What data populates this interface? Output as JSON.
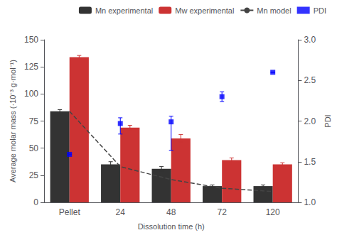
{
  "chart_data": {
    "type": "bar",
    "xlabel": "Dissolution time (h)",
    "ylabel": "Average molar mass (·10⁻³ g·mol⁻¹)",
    "y2label": "PDI",
    "categories": [
      "Pellet",
      "24",
      "48",
      "72",
      "120"
    ],
    "ylim": [
      0,
      150
    ],
    "yticks": [
      0,
      25,
      50,
      75,
      100,
      125,
      150
    ],
    "y2lim": [
      1.0,
      3.0
    ],
    "y2ticks": [
      {
        "value": 1.0,
        "label": "1.0"
      },
      1.5,
      {
        "value": 2.0,
        "label": "2.0"
      },
      2.5,
      {
        "value": 3.0,
        "label": "3.0"
      }
    ],
    "grid": false,
    "legend": "upper right",
    "series": [
      {
        "name": "Mn experimental",
        "type": "bar",
        "color": "#333333",
        "values": [
          84,
          35,
          31,
          15,
          15
        ],
        "errors": [
          1.5,
          2.5,
          2.0,
          1.0,
          1.0
        ]
      },
      {
        "name": "Mw experimental",
        "type": "bar",
        "color": "#cc3333",
        "values": [
          134,
          69,
          59,
          39,
          35
        ],
        "errors": [
          1.5,
          2.0,
          3.5,
          2.0,
          1.5
        ]
      },
      {
        "name": "Mn model",
        "type": "line",
        "color": "#444444",
        "line_style": "dashed",
        "values": [
          84,
          33,
          21,
          13,
          10
        ]
      },
      {
        "name": "PDI",
        "type": "scatter",
        "color": "blue",
        "marker": "square",
        "axis": "y2",
        "values": [
          1.59,
          1.97,
          1.99,
          2.3,
          2.6
        ],
        "errors_plus": [
          0.0,
          0.07,
          0.07,
          0.06,
          0.0
        ],
        "errors_minus": [
          0.0,
          0.13,
          0.35,
          0.06,
          0.0
        ]
      }
    ]
  }
}
